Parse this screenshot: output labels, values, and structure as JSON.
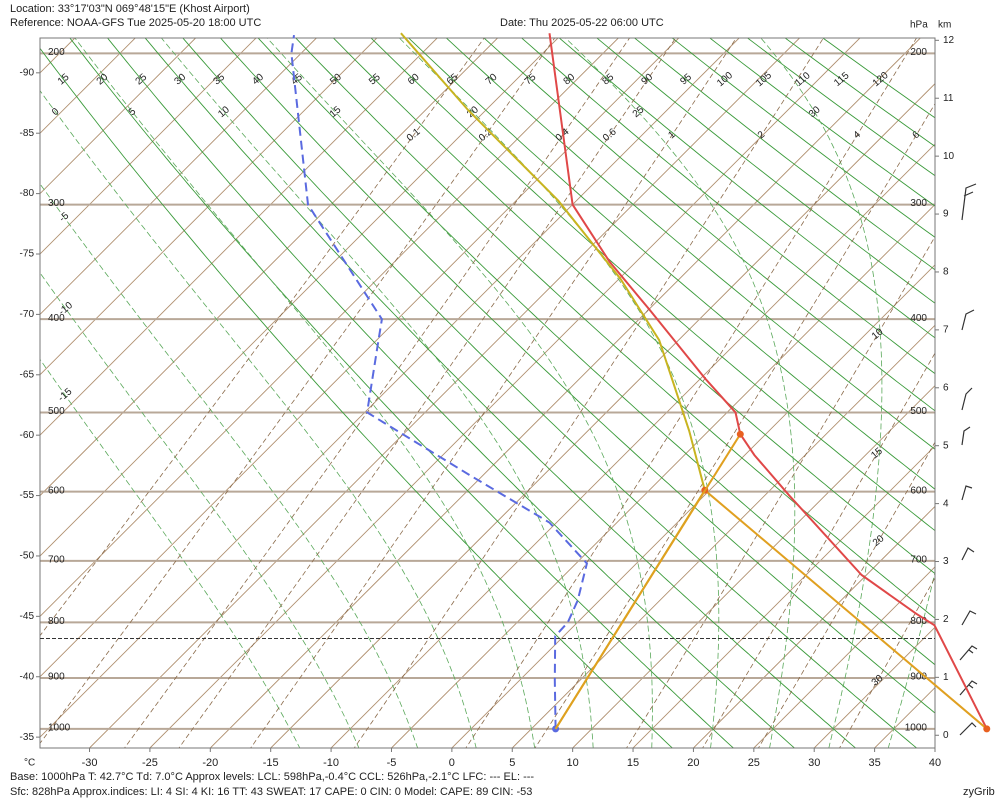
{
  "header": {
    "location": "Location:  33°17'03\"N  069°48'15\"E (Khost Airport)",
    "reference": "Reference: NOAA-GFS Tue 2025-05-20 18:00 UTC",
    "date": "Date: Thu 2025-05-22 06:00 UTC"
  },
  "footer": {
    "line1": "Base: 1000hPa  T: 42.7°C  Td: 7.0°C     Approx levels:  LCL: 598hPa,-0.4°C   CCL: 526hPa,-2.1°C   LFC: ---   EL: ---",
    "line2": "Sfc: 828hPa        Approx.indices:  LI: 4   SI: 4   KI: 16   TT: 43   SWEAT: 17     CAPE: 0   CIN: 0        Model: CAPE: 89 CIN: -53",
    "brand": "zyGrib"
  },
  "chart_data": {
    "type": "skewt",
    "x_unit": "°C",
    "pressure_unit": "hPa",
    "height_unit": "km",
    "xlim": [
      -34.1,
      40
    ],
    "xticks": [
      -30,
      -25,
      -20,
      -15,
      -10,
      -5,
      0,
      5,
      10,
      15,
      20,
      25,
      30,
      35,
      40
    ],
    "isotherm_ticks": [
      -90,
      -85,
      -80,
      -75,
      -70,
      -65,
      -60,
      -55,
      -50,
      -45,
      -40,
      -35
    ],
    "zlim": [
      -0.22,
      12.04
    ],
    "zticks": [
      0,
      1,
      2,
      3,
      4,
      5,
      6,
      7,
      8,
      9,
      10,
      11,
      12
    ],
    "pressure_ticks": [
      200,
      300,
      400,
      500,
      600,
      700,
      800,
      900,
      1000
    ],
    "dry_adiabats": [
      15,
      20,
      25,
      30,
      35,
      40,
      45,
      50,
      55,
      60,
      65,
      70,
      75,
      80,
      85,
      90,
      95,
      100,
      105,
      110,
      115,
      120
    ],
    "moist_adiabats": [
      -15,
      -10,
      -5,
      0,
      5,
      10,
      15,
      20,
      25,
      30,
      35
    ],
    "mixing_ratios": [
      0.1,
      0.2,
      0.4,
      0.6,
      1,
      2,
      4,
      6,
      10,
      15,
      20,
      30
    ],
    "surface_pressure": 828,
    "series": [
      {
        "color": "#e04848",
        "pressure": [
          1000,
          805,
          785,
          722,
          605,
          552,
          526,
          500,
          461,
          391,
          347,
          300,
          189
        ],
        "values": [
          42.7,
          29.8,
          27.3,
          19.6,
          7.0,
          0.8,
          -2.1,
          -4.3,
          -9.7,
          -19.9,
          -27.2,
          -35.0,
          -51.1
        ]
      },
      {
        "color": "#5a6ae0",
        "dashed": true,
        "marker": "first",
        "pressure": [
          1000,
          904,
          824,
          800,
          763,
          704,
          643,
          578,
          500,
          426,
          400,
          300,
          200,
          190
        ],
        "values": [
          7.0,
          2.9,
          -0.7,
          -0.8,
          -1.8,
          -4.1,
          -10.6,
          -21.1,
          -34.8,
          -39.5,
          -41.3,
          -56.9,
          -70.8,
          -72.1
        ]
      },
      {
        "color": "#c8b420",
        "pressure": [
          1000,
          598,
          522,
          421,
          362,
          297,
          234,
          189
        ],
        "values": [
          7.0,
          -0.4,
          -6.6,
          -16.6,
          -24.9,
          -36.5,
          -51.4,
          -63.4
        ]
      },
      {
        "color": "#e0a020",
        "marker": "both",
        "pressure": [
          598,
          1000
        ],
        "values": [
          -0.4,
          42.7
        ]
      },
      {
        "color": "#e0a020",
        "marker": "last",
        "pressure": [
          1000,
          526
        ],
        "values": [
          7.0,
          -2.1
        ]
      }
    ]
  }
}
